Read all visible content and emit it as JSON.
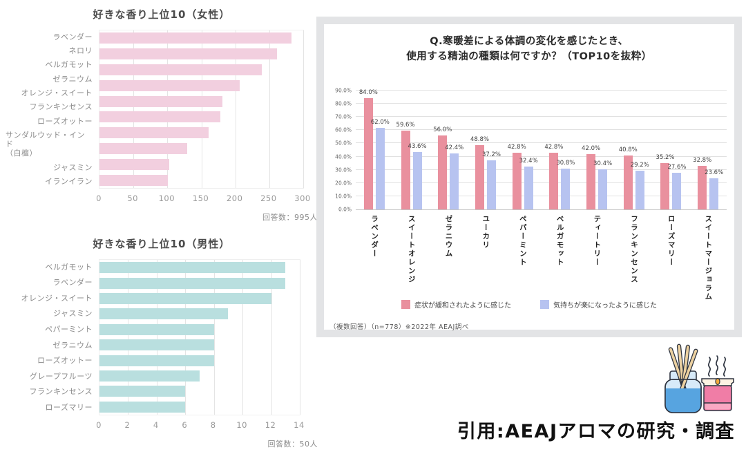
{
  "page": {
    "background": "#ffffff"
  },
  "citation": {
    "text": "引用:AEAJアロマの研究・調査"
  },
  "illustration": {
    "name": "aroma-diffuser-and-candle"
  },
  "chart_data": [
    {
      "id": "women",
      "type": "bar",
      "orientation": "horizontal",
      "title": "好きな香り上位10（女性）",
      "note": "回答数：995人",
      "bar_color": "#f2cfdf",
      "grid": true,
      "xlim": [
        0,
        300
      ],
      "xticks": [
        0,
        50,
        100,
        150,
        200,
        250,
        300
      ],
      "categories": [
        "ラベンダー",
        "ネロリ",
        "ベルガモット",
        "ゼラニウム",
        "オレンジ・スイート",
        "フランキンセンス",
        "ローズオットー",
        "サンダルウッド・インド\n（白檀）",
        "ジャスミン",
        "イランイラン"
      ],
      "values": [
        283,
        261,
        239,
        206,
        181,
        178,
        161,
        129,
        103,
        101
      ]
    },
    {
      "id": "men",
      "type": "bar",
      "orientation": "horizontal",
      "title": "好きな香り上位10（男性）",
      "note": "回答数：50人",
      "bar_color": "#b9dfdf",
      "grid": true,
      "xlim": [
        0,
        14
      ],
      "xticks": [
        0,
        2,
        4,
        6,
        8,
        10,
        12,
        14
      ],
      "categories": [
        "ベルガモット",
        "ラベンダー",
        "オレンジ・スイート",
        "ジャスミン",
        "ペパーミント",
        "ゼラニウム",
        "ローズオットー",
        "グレープフルーツ",
        "フランキンセンス",
        "ローズマリー"
      ],
      "values": [
        13,
        13,
        12,
        9,
        8,
        8,
        8,
        7,
        6,
        6
      ]
    },
    {
      "id": "essential-oils",
      "type": "bar",
      "orientation": "vertical-grouped",
      "title": "Q.寒暖差による体調の変化を感じたとき、使用する精油の種類は何ですか？（TOP10を抜粋）",
      "title_lines": [
        "Q.寒暖差による体調の変化を感じたとき、",
        "使用する精油の種類は何ですか？（TOP10を抜粋）"
      ],
      "ylim": [
        0,
        90
      ],
      "yticks": [
        "0.0%",
        "10.0%",
        "20.0%",
        "30.0%",
        "40.0%",
        "50.0%",
        "60.0%",
        "70.0%",
        "80.0%",
        "90.0%"
      ],
      "grid": true,
      "legend_position": "bottom",
      "categories": [
        "ラベンダー",
        "スイートオレンジ",
        "ゼラニウム",
        "ユーカリ",
        "ペパーミント",
        "ベルガモット",
        "ティートリー",
        "フランキンセンス",
        "ローズマリー",
        "スイートマージョラム"
      ],
      "series": [
        {
          "name": "症状が緩和されたように感じた",
          "color": "#e9909e",
          "values": [
            84.0,
            59.6,
            56.0,
            48.8,
            42.8,
            42.8,
            42.0,
            40.8,
            35.2,
            32.8
          ]
        },
        {
          "name": "気持ちが楽になったように感じた",
          "color": "#b7c3f0",
          "values": [
            62.0,
            43.6,
            42.4,
            37.2,
            32.4,
            30.8,
            30.4,
            29.2,
            27.6,
            23.6
          ]
        }
      ],
      "footnote": "（複数回答）（n=778）※2022年 AEAJ調べ"
    }
  ]
}
